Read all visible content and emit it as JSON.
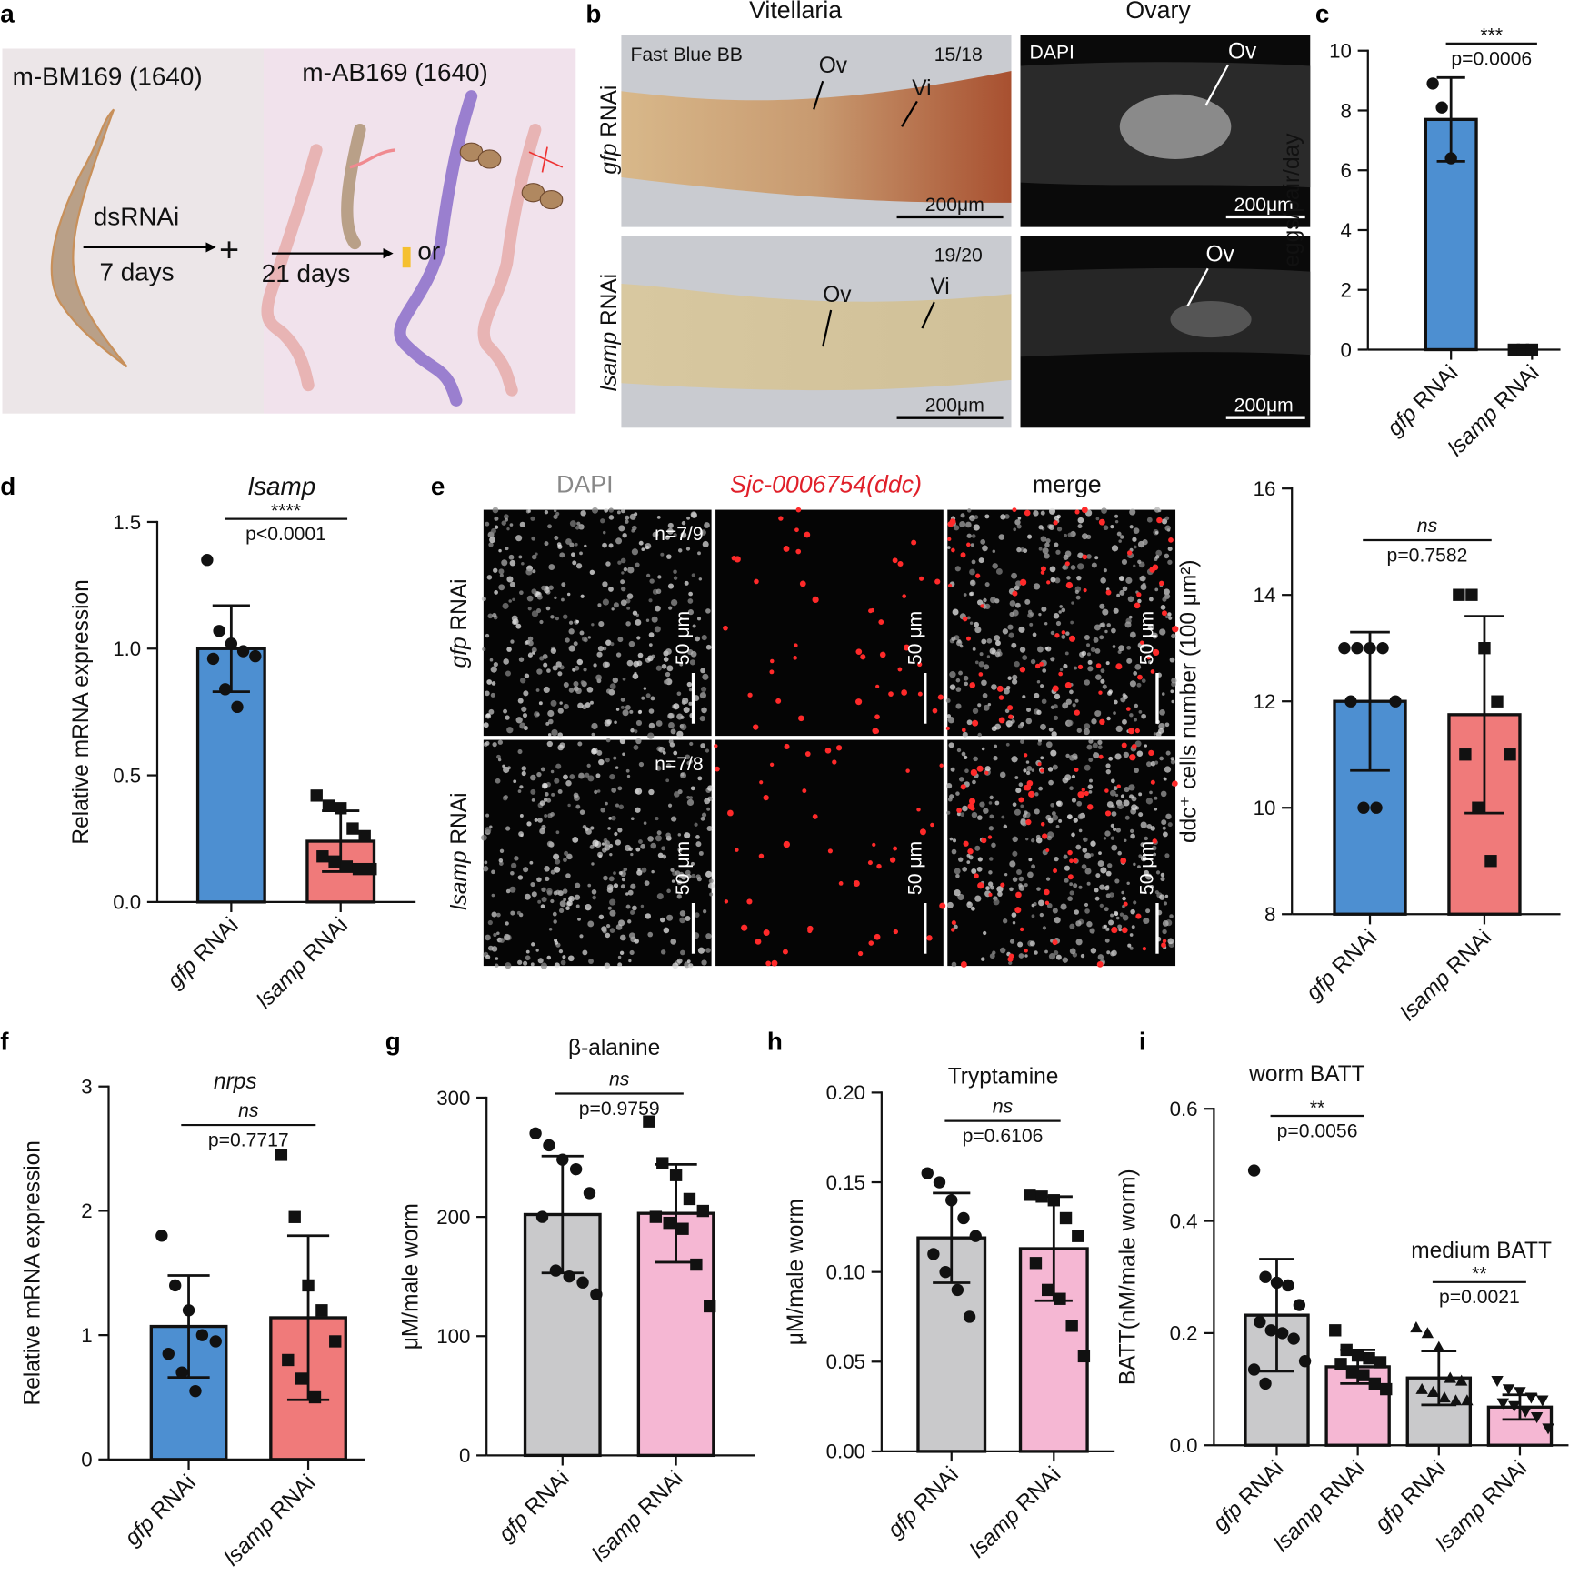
{
  "panel_labels": [
    "a",
    "b",
    "c",
    "d",
    "e",
    "f",
    "g",
    "h",
    "i"
  ],
  "panel_a": {
    "left_title": "m-BM169 (1640)",
    "right_title": "m-AB169 (1640)",
    "treatment": "dsRNAi",
    "duration1": "7 days",
    "plus": "+",
    "duration2": "21 days",
    "or": "or",
    "colors": {
      "left_bg": "#ece6e8",
      "right_bg": "#f1e2ec",
      "male": "#b9a088",
      "female": "#e8b4b4",
      "mature": "#9a7fcf"
    }
  },
  "panel_b": {
    "col_titles": [
      "Vitellaria",
      "Ovary"
    ],
    "rows": [
      {
        "gene": "gfp",
        "suffix": " RNAi",
        "stain": "Fast Blue BB",
        "ratio": "15/18",
        "ov": "Ov",
        "vi": "Vi",
        "scale": "200μm",
        "dapi": "DAPI",
        "ov2": "Ov",
        "scale2": "200μm"
      },
      {
        "gene": "lsamp",
        "suffix": " RNAi",
        "ratio": "19/20",
        "ov": "Ov",
        "vi": "Vi",
        "scale": "200μm",
        "ov2": "Ov",
        "scale2": "200μm"
      }
    ]
  },
  "panel_e_images": {
    "col_titles": [
      "DAPI",
      "Sjc-0006754(ddc)",
      "merge"
    ],
    "rows": [
      {
        "gene": "gfp",
        "suffix": " RNAi",
        "n": "n=7/9",
        "scale": "50 μm"
      },
      {
        "gene": "lsamp",
        "suffix": " RNAi",
        "n": "n=7/8",
        "scale": "50 μm"
      }
    ]
  },
  "chart_data": [
    {
      "id": "c",
      "type": "bar",
      "title": "",
      "ylabel": "eggs/pair/day",
      "ylim": [
        0,
        10
      ],
      "yticks": [
        "0",
        "2",
        "4",
        "6",
        "8",
        "10"
      ],
      "tickvals": [
        0,
        2,
        4,
        6,
        8,
        10
      ],
      "categories": [
        {
          "gene": "gfp",
          "suffix": " RNAi"
        },
        {
          "gene": "lsamp",
          "suffix": " RNAi"
        }
      ],
      "series": [
        {
          "name": "gfp RNAi",
          "mean": 7.7,
          "sd": 1.4,
          "color": "#4d8fd1",
          "marker": "circle",
          "points": [
            8.9,
            8.1,
            6.4
          ]
        },
        {
          "name": "lsamp RNAi",
          "mean": 0,
          "sd": 0,
          "color": "#f07a7a",
          "marker": "square",
          "points": [
            0,
            0,
            0
          ]
        }
      ],
      "significance": [
        {
          "stars": "***",
          "p": "p=0.0006",
          "from": 0,
          "to": 1
        }
      ]
    },
    {
      "id": "d",
      "type": "bar",
      "title": "lsamp",
      "ylabel": "Relative mRNA expression",
      "ylim": [
        0,
        1.5
      ],
      "yticks": [
        "0.0",
        "0.5",
        "1.0",
        "1.5"
      ],
      "tickvals": [
        0,
        0.5,
        1,
        1.5
      ],
      "categories": [
        {
          "gene": "gfp",
          "suffix": " RNAi"
        },
        {
          "gene": "lsamp",
          "suffix": " RNAi"
        }
      ],
      "series": [
        {
          "name": "gfp RNAi",
          "mean": 1.0,
          "sd": 0.17,
          "color": "#4d8fd1",
          "marker": "circle",
          "points": [
            1.35,
            1.07,
            1.02,
            0.99,
            0.97,
            0.96,
            0.84,
            0.77
          ]
        },
        {
          "name": "lsamp RNAi",
          "mean": 0.24,
          "sd": 0.12,
          "color": "#f07a7a",
          "marker": "square",
          "points": [
            0.42,
            0.38,
            0.37,
            0.29,
            0.26,
            0.18,
            0.16,
            0.14,
            0.13,
            0.13
          ]
        }
      ],
      "significance": [
        {
          "stars": "****",
          "p": "p<0.0001",
          "from": 0,
          "to": 1
        }
      ]
    },
    {
      "id": "e",
      "type": "bar",
      "title": "",
      "ylabel": "ddc⁺ cells number (100 μm²)",
      "ylim": [
        8,
        16
      ],
      "yticks": [
        "8",
        "10",
        "12",
        "14",
        "16"
      ],
      "tickvals": [
        8,
        10,
        12,
        14,
        16
      ],
      "categories": [
        {
          "gene": "gfp",
          "suffix": " RNAi"
        },
        {
          "gene": "lsamp",
          "suffix": " RNAi"
        }
      ],
      "series": [
        {
          "name": "gfp RNAi",
          "mean": 12.0,
          "sd": 1.3,
          "color": "#4d8fd1",
          "marker": "circle",
          "points": [
            13,
            13,
            13,
            13,
            12,
            12,
            10,
            10
          ]
        },
        {
          "name": "lsamp RNAi",
          "mean": 11.75,
          "sd": 1.85,
          "color": "#f07a7a",
          "marker": "square",
          "points": [
            14,
            14,
            13,
            12,
            11,
            11,
            10,
            9
          ]
        }
      ],
      "significance": [
        {
          "stars": "ns",
          "p": "p=0.7582",
          "from": 0,
          "to": 1
        }
      ]
    },
    {
      "id": "f",
      "type": "bar",
      "title": "nrps",
      "ylabel": "Relative mRNA expression",
      "ylim": [
        0,
        3
      ],
      "yticks": [
        "0",
        "1",
        "2",
        "3"
      ],
      "tickvals": [
        0,
        1,
        2,
        3
      ],
      "categories": [
        {
          "gene": "gfp",
          "suffix": " RNAi"
        },
        {
          "gene": "lsamp",
          "suffix": " RNAi"
        }
      ],
      "series": [
        {
          "name": "gfp RNAi",
          "mean": 1.07,
          "sd": 0.41,
          "color": "#4d8fd1",
          "marker": "circle",
          "points": [
            1.8,
            1.4,
            1.2,
            1.0,
            0.95,
            0.85,
            0.7,
            0.55
          ]
        },
        {
          "name": "lsamp RNAi",
          "mean": 1.14,
          "sd": 0.66,
          "color": "#f07a7a",
          "marker": "square",
          "points": [
            2.45,
            1.95,
            1.4,
            1.2,
            0.95,
            0.8,
            0.65,
            0.5
          ]
        }
      ],
      "significance": [
        {
          "stars": "ns",
          "p": "p=0.7717",
          "from": 0,
          "to": 1
        }
      ]
    },
    {
      "id": "g",
      "type": "bar",
      "title": "β-alanine",
      "ylabel": "μM/male worm",
      "ylim": [
        0,
        300
      ],
      "yticks": [
        "0",
        "100",
        "200",
        "300"
      ],
      "tickvals": [
        0,
        100,
        200,
        300
      ],
      "categories": [
        {
          "gene": "gfp",
          "suffix": " RNAi"
        },
        {
          "gene": "lsamp",
          "suffix": " RNAi"
        }
      ],
      "series": [
        {
          "name": "gfp RNAi",
          "mean": 202,
          "sd": 49,
          "color": "#c9c9cb",
          "marker": "circle",
          "points": [
            270,
            260,
            248,
            240,
            220,
            200,
            155,
            150,
            145,
            135
          ]
        },
        {
          "name": "lsamp RNAi",
          "mean": 203,
          "sd": 41,
          "color": "#f5b7d3",
          "marker": "square",
          "points": [
            280,
            245,
            235,
            215,
            205,
            200,
            195,
            190,
            160,
            125
          ]
        }
      ],
      "significance": [
        {
          "stars": "ns",
          "p": "p=0.9759",
          "from": 0,
          "to": 1
        }
      ]
    },
    {
      "id": "h",
      "type": "bar",
      "title": "Tryptamine",
      "ylabel": "μM/male worm",
      "ylim": [
        0,
        0.2
      ],
      "yticks": [
        "0.00",
        "0.05",
        "0.10",
        "0.15",
        "0.20"
      ],
      "tickvals": [
        0,
        0.05,
        0.1,
        0.15,
        0.2
      ],
      "categories": [
        {
          "gene": "gfp",
          "suffix": " RNAi"
        },
        {
          "gene": "lsamp",
          "suffix": " RNAi"
        }
      ],
      "series": [
        {
          "name": "gfp RNAi",
          "mean": 0.119,
          "sd": 0.025,
          "color": "#c9c9cb",
          "marker": "circle",
          "points": [
            0.155,
            0.15,
            0.14,
            0.13,
            0.12,
            0.11,
            0.1,
            0.09,
            0.075
          ]
        },
        {
          "name": "lsamp RNAi",
          "mean": 0.113,
          "sd": 0.029,
          "color": "#f5b7d3",
          "marker": "square",
          "points": [
            0.143,
            0.142,
            0.14,
            0.13,
            0.12,
            0.105,
            0.09,
            0.085,
            0.07,
            0.053
          ]
        }
      ],
      "significance": [
        {
          "stars": "ns",
          "p": "p=0.6106",
          "from": 0,
          "to": 1
        }
      ]
    },
    {
      "id": "i",
      "type": "bar",
      "title": "",
      "ylabel": "BATT(nM/male worm)",
      "ylim": [
        0,
        0.6
      ],
      "yticks": [
        "0.0",
        "0.2",
        "0.4",
        "0.6"
      ],
      "tickvals": [
        0,
        0.2,
        0.4,
        0.6
      ],
      "categories": [
        {
          "gene": "gfp",
          "suffix": " RNAi"
        },
        {
          "gene": "lsamp",
          "suffix": " RNAi"
        },
        {
          "gene": "gfp",
          "suffix": " RNAi"
        },
        {
          "gene": "lsamp",
          "suffix": " RNAi"
        }
      ],
      "series": [
        {
          "name": "worm gfp RNAi",
          "mean": 0.232,
          "sd": 0.1,
          "color": "#c9c9cb",
          "marker": "circle",
          "points": [
            0.49,
            0.3,
            0.29,
            0.285,
            0.25,
            0.22,
            0.205,
            0.2,
            0.19,
            0.15,
            0.135,
            0.11
          ]
        },
        {
          "name": "worm lsamp RNAi",
          "mean": 0.14,
          "sd": 0.03,
          "color": "#f5b7d3",
          "marker": "square",
          "points": [
            0.205,
            0.17,
            0.16,
            0.155,
            0.148,
            0.145,
            0.13,
            0.125,
            0.11,
            0.1
          ]
        },
        {
          "name": "medium gfp RNAi",
          "mean": 0.12,
          "sd": 0.048,
          "color": "#c9c9cb",
          "marker": "triangle",
          "points": [
            0.21,
            0.2,
            0.175,
            0.12,
            0.115,
            0.1,
            0.095,
            0.085,
            0.08,
            0.08
          ]
        },
        {
          "name": "medium lsamp RNAi",
          "mean": 0.068,
          "sd": 0.022,
          "color": "#f5b7d3",
          "marker": "triangle-down",
          "points": [
            0.115,
            0.1,
            0.095,
            0.085,
            0.08,
            0.075,
            0.07,
            0.06,
            0.05,
            0.03
          ]
        }
      ],
      "subtitles": [
        "worm BATT",
        "medium BATT"
      ],
      "significance": [
        {
          "stars": "**",
          "p": "p=0.0056",
          "from": 0,
          "to": 1
        },
        {
          "stars": "**",
          "p": "p=0.0021",
          "from": 2,
          "to": 3
        }
      ]
    }
  ]
}
